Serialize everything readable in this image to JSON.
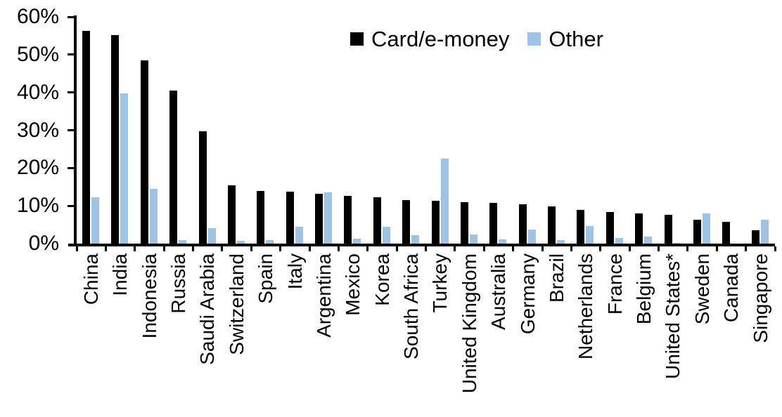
{
  "chart_data": {
    "type": "bar",
    "title": "",
    "xlabel": "",
    "ylabel": "",
    "y_unit": "%",
    "ylim": [
      0,
      60
    ],
    "ytick_step": 10,
    "ytick_labels": [
      "0%",
      "10%",
      "20%",
      "30%",
      "40%",
      "50%",
      "60%"
    ],
    "grid": false,
    "legend_position": "top-center",
    "categories": [
      "China",
      "India",
      "Indonesia",
      "Russia",
      "Saudi Arabia",
      "Switzerland",
      "Spain",
      "Italy",
      "Argentina",
      "Mexico",
      "Korea",
      "South Africa",
      "Turkey",
      "United Kingdom",
      "Australia",
      "Germany",
      "Brazil",
      "Netherlands",
      "France",
      "Belgium",
      "United States*",
      "Sweden",
      "Canada",
      "Singapore"
    ],
    "series": [
      {
        "name": "Card/e-money",
        "color": "#000000",
        "values": [
          56.3,
          55.2,
          48.4,
          40.5,
          29.8,
          15.4,
          13.9,
          13.8,
          13.1,
          12.7,
          12.2,
          11.6,
          11.4,
          11.0,
          10.7,
          10.4,
          9.8,
          8.9,
          8.4,
          7.9,
          7.6,
          6.3,
          5.7,
          3.5
        ]
      },
      {
        "name": "Other",
        "color": "#9DC3E6",
        "values": [
          12.2,
          39.8,
          14.4,
          1.0,
          4.0,
          0.8,
          1.0,
          4.5,
          13.6,
          1.3,
          4.5,
          2.3,
          22.5,
          2.4,
          1.1,
          3.7,
          1.0,
          4.7,
          1.4,
          1.8,
          0.2,
          7.9,
          0.0,
          6.4
        ]
      }
    ]
  }
}
